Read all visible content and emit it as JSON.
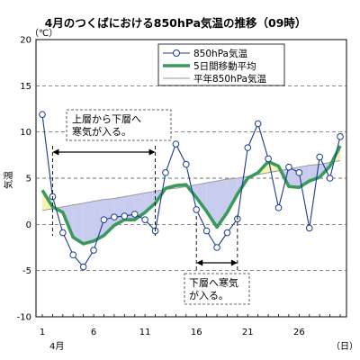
{
  "chart_data": {
    "type": "line",
    "title": "4月のつくばにおける850hPa気温の推移（09時）",
    "unit": "（℃）",
    "ylabel": "気温",
    "month_label": "4月",
    "x_unit": "（日）",
    "ylim": [
      -10,
      20
    ],
    "xlim": [
      1,
      30
    ],
    "yticks": [
      -10,
      -5,
      0,
      5,
      10,
      15,
      20
    ],
    "xticks": [
      1,
      6,
      11,
      16,
      21,
      26
    ],
    "grid": true,
    "legend_position": "top-right",
    "x": [
      1,
      2,
      3,
      4,
      5,
      6,
      7,
      8,
      9,
      10,
      11,
      12,
      13,
      14,
      15,
      16,
      17,
      18,
      19,
      20,
      21,
      22,
      23,
      24,
      25,
      26,
      27,
      28,
      29,
      30
    ],
    "series": [
      {
        "name": "850hPa気温",
        "color": "#1a3c8c",
        "marker": "circle",
        "values": [
          11.9,
          3.0,
          -0.9,
          -3.3,
          -4.6,
          -2.8,
          0.5,
          0.8,
          0.9,
          1.1,
          0.5,
          -0.7,
          5.6,
          8.7,
          6.5,
          1.6,
          -0.7,
          -2.5,
          -0.9,
          0.6,
          8.3,
          10.9,
          7.1,
          1.8,
          6.2,
          5.6,
          -0.4,
          7.3,
          5.0,
          9.5
        ]
      },
      {
        "name": "5日間移動平均",
        "color": "#3a9a5a",
        "values": [
          3.7,
          1.9,
          1.3,
          -1.4,
          -2.1,
          -1.8,
          -1.2,
          -0.1,
          0.5,
          0.5,
          1.3,
          2.3,
          3.9,
          4.2,
          4.3,
          2.9,
          1.4,
          -0.3,
          1.3,
          3.3,
          5.0,
          5.6,
          6.8,
          6.3,
          4.1,
          4.0,
          4.7,
          5.1,
          6.3,
          8.5
        ]
      },
      {
        "name": "平年850hPa気温",
        "color": "#9a9a9a",
        "values": [
          1.5,
          1.7,
          1.9,
          2.1,
          2.3,
          2.5,
          2.7,
          2.8,
          3.0,
          3.2,
          3.4,
          3.6,
          3.8,
          3.9,
          4.1,
          4.3,
          4.5,
          4.7,
          4.9,
          5.0,
          5.2,
          5.4,
          5.6,
          5.8,
          6.0,
          6.2,
          6.4,
          6.5,
          6.7,
          6.9
        ]
      }
    ],
    "annotations": [
      {
        "lines": [
          "上層から下層へ",
          "寒気が入る。"
        ],
        "span": [
          2,
          12
        ]
      },
      {
        "lines": [
          "下層へ寒気",
          "が入る。"
        ],
        "span": [
          16,
          20
        ]
      }
    ]
  }
}
